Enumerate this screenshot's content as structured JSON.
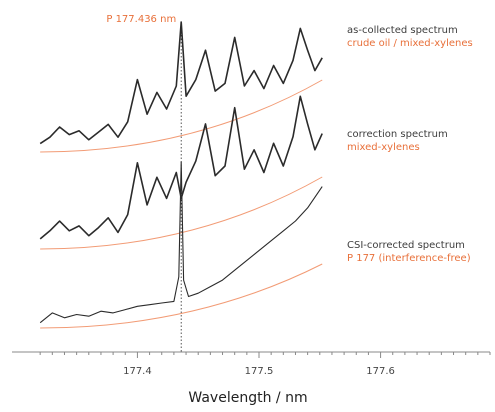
{
  "chart_data": {
    "type": "line",
    "xlabel": "Wavelength / nm",
    "xlim": [
      177.31,
      177.69
    ],
    "x_ticks": [
      177.4,
      177.5,
      177.6
    ],
    "x_tick_labels": [
      "177.4",
      "177.5",
      "177.6"
    ],
    "grid": false,
    "legend": "none",
    "annotation": {
      "label": "P 177.436 nm",
      "x": 177.436
    },
    "series": [
      {
        "name": "as-collected spectrum",
        "subtitle": "crude oil / mixed-xylenes",
        "x": [
          177.32,
          177.328,
          177.336,
          177.344,
          177.352,
          177.36,
          177.368,
          177.376,
          177.384,
          177.392,
          177.4,
          177.408,
          177.416,
          177.424,
          177.432,
          177.436,
          177.44,
          177.448,
          177.456,
          177.464,
          177.472,
          177.48,
          177.488,
          177.496,
          177.504,
          177.512,
          177.52,
          177.528,
          177.534,
          177.54,
          177.546,
          177.552
        ],
        "y": [
          0.05,
          0.1,
          0.18,
          0.12,
          0.15,
          0.08,
          0.14,
          0.2,
          0.1,
          0.22,
          0.55,
          0.28,
          0.45,
          0.32,
          0.5,
          1.0,
          0.42,
          0.55,
          0.78,
          0.46,
          0.52,
          0.88,
          0.5,
          0.62,
          0.48,
          0.66,
          0.52,
          0.7,
          0.95,
          0.78,
          0.62,
          0.72
        ]
      },
      {
        "name": "correction spectrum",
        "subtitle": "mixed-xylenes",
        "x": [
          177.32,
          177.328,
          177.336,
          177.344,
          177.352,
          177.36,
          177.368,
          177.376,
          177.384,
          177.392,
          177.4,
          177.408,
          177.416,
          177.424,
          177.432,
          177.436,
          177.44,
          177.448,
          177.456,
          177.464,
          177.472,
          177.48,
          177.488,
          177.496,
          177.504,
          177.512,
          177.52,
          177.528,
          177.534,
          177.54,
          177.546,
          177.552
        ],
        "y": [
          0.05,
          0.1,
          0.16,
          0.1,
          0.13,
          0.07,
          0.12,
          0.18,
          0.09,
          0.2,
          0.52,
          0.26,
          0.43,
          0.3,
          0.46,
          0.3,
          0.4,
          0.53,
          0.76,
          0.44,
          0.5,
          0.86,
          0.48,
          0.6,
          0.46,
          0.64,
          0.5,
          0.68,
          0.93,
          0.76,
          0.6,
          0.7
        ]
      },
      {
        "name": "CSI-corrected spectrum",
        "subtitle": "P 177 (interference-free)",
        "x": [
          177.32,
          177.33,
          177.34,
          177.35,
          177.36,
          177.37,
          177.38,
          177.39,
          177.4,
          177.41,
          177.42,
          177.43,
          177.434,
          177.436,
          177.438,
          177.442,
          177.45,
          177.46,
          177.47,
          177.48,
          177.49,
          177.5,
          177.51,
          177.52,
          177.53,
          177.54,
          177.552
        ],
        "y": [
          0.02,
          0.08,
          0.05,
          0.07,
          0.06,
          0.09,
          0.08,
          0.1,
          0.12,
          0.13,
          0.14,
          0.15,
          0.3,
          1.0,
          0.28,
          0.18,
          0.2,
          0.24,
          0.28,
          0.34,
          0.4,
          0.46,
          0.52,
          0.58,
          0.64,
          0.72,
          0.85
        ]
      }
    ],
    "colors": {
      "spectrum": "#2b2b2b",
      "accent": "#e8703a",
      "baseline": "#f08a5d",
      "text": "#3d3d3d"
    }
  }
}
